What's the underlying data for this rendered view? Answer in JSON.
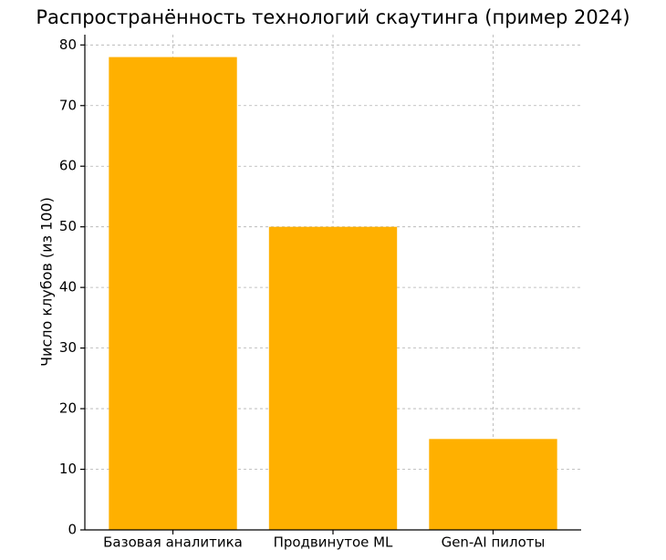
{
  "chart_data": {
    "type": "bar",
    "title": "Распространённость технологий скаутинга (пример 2024)",
    "ylabel": "Число клубов (из 100)",
    "categories": [
      "Базовая аналитика",
      "Продвинутое ML",
      "Gen-AI пилоты"
    ],
    "values": [
      78,
      50,
      15
    ],
    "color": "#ffb000",
    "ylim": [
      0,
      81.7
    ],
    "yticks": [
      0,
      10,
      20,
      30,
      40,
      50,
      60,
      70,
      80
    ],
    "grid": true
  }
}
